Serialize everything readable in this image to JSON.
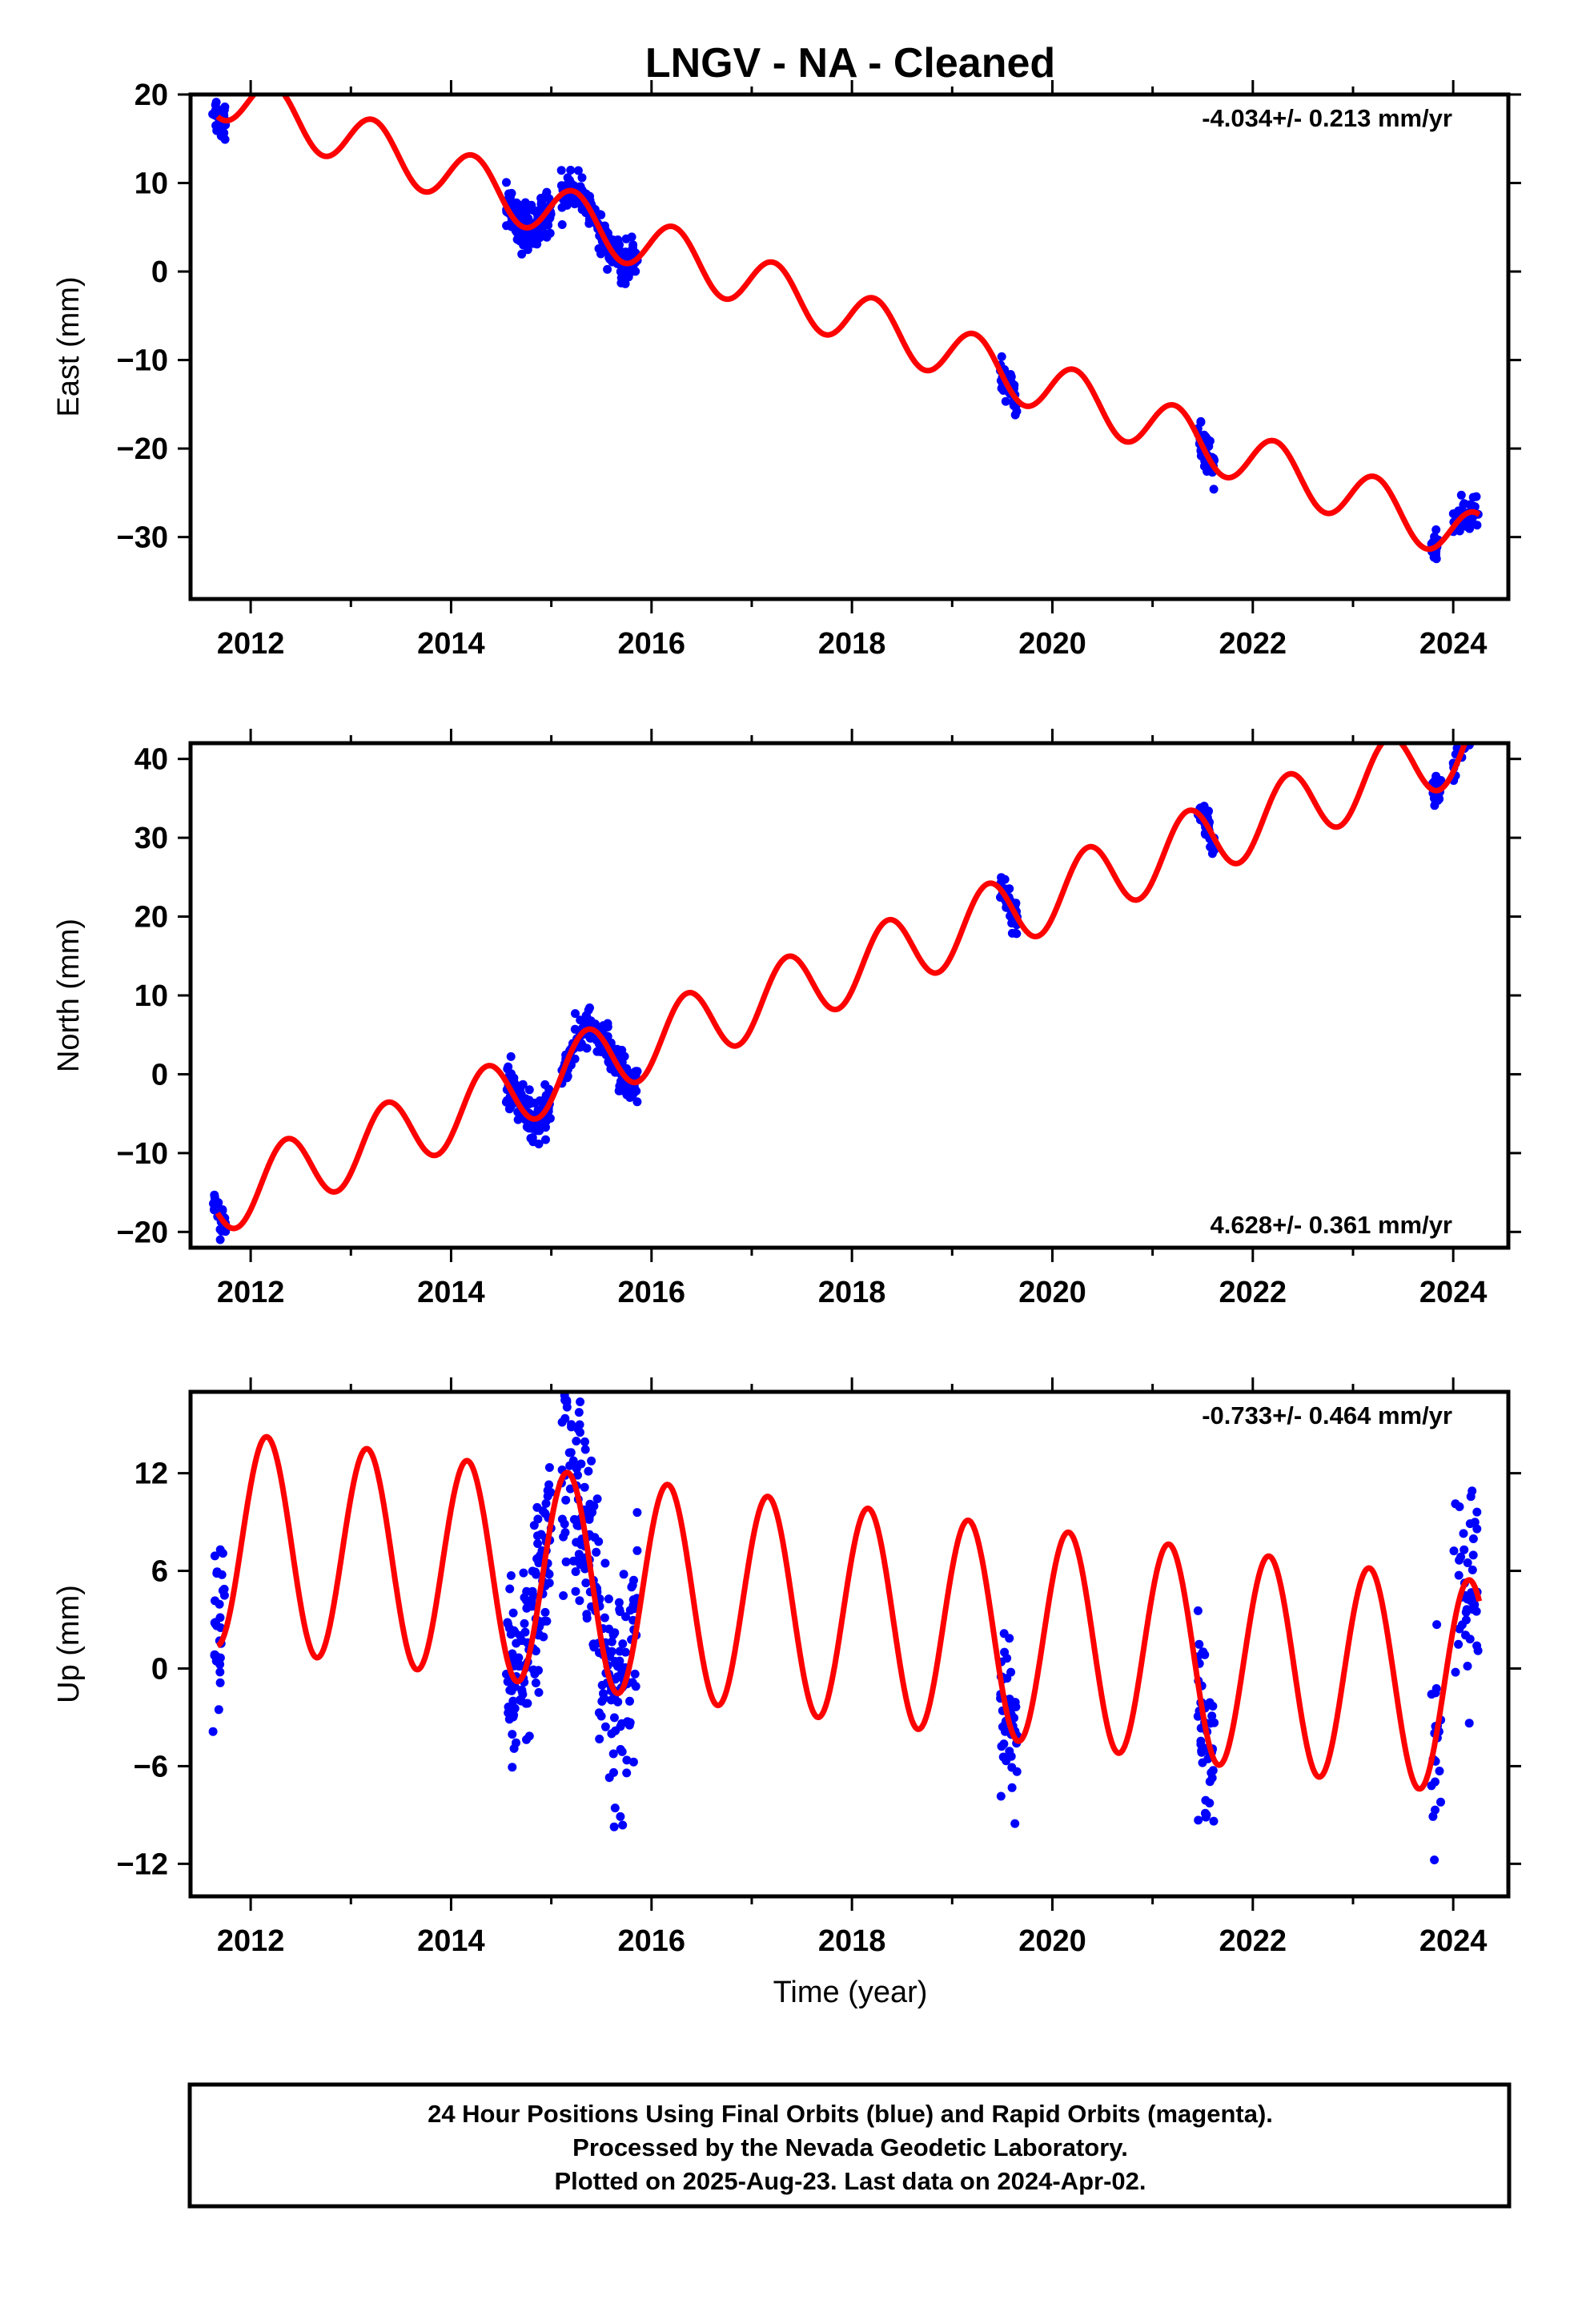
{
  "page": {
    "title": "LNGV  - NA - Cleaned",
    "footer_lines": [
      "24 Hour Positions Using Final Orbits (blue) and Rapid Orbits (magenta).",
      "Processed by the Nevada Geodetic Laboratory.",
      "Plotted on 2025-Aug-23. Last data on 2024-Apr-02."
    ]
  },
  "colors": {
    "observations": "#0000ff",
    "model": "#ff0000",
    "frame": "#000000"
  },
  "chart_data": [
    {
      "type": "scatter",
      "ylabel": "East (mm)",
      "rate": "-4.034+/- 0.213 mm/yr",
      "rate_position": "top-right",
      "xlim": [
        2011.4,
        2024.55
      ],
      "ylim": [
        -37,
        20
      ],
      "x_ticks": [
        2012,
        2014,
        2016,
        2018,
        2020,
        2022,
        2024
      ],
      "y_ticks": [
        20,
        10,
        0,
        -10,
        -20,
        -30
      ],
      "grid": false,
      "model": {
        "trend_start": 2011.67,
        "trend_start_value": 17.5,
        "rate": -4.034,
        "cos_amp": 0.5,
        "sin_amp": 3.0,
        "offsets": []
      },
      "clusters": [
        {
          "t0": 2011.62,
          "t1": 2011.75,
          "resid_sd": 1.2,
          "n": 30
        },
        {
          "t0": 2014.55,
          "t1": 2015.0,
          "resid_sd": 1.3,
          "n": 130
        },
        {
          "t0": 2015.1,
          "t1": 2015.86,
          "resid_sd": 1.0,
          "n": 200
        },
        {
          "t0": 2019.48,
          "t1": 2019.65,
          "resid_sd": 0.9,
          "n": 45
        },
        {
          "t0": 2021.45,
          "t1": 2021.62,
          "resid_sd": 1.0,
          "n": 45
        },
        {
          "t0": 2023.78,
          "t1": 2023.85,
          "resid_sd": 1.0,
          "n": 20
        },
        {
          "t0": 2024.0,
          "t1": 2024.25,
          "resid_sd": 1.2,
          "n": 45
        }
      ]
    },
    {
      "type": "scatter",
      "ylabel": "North (mm)",
      "rate": "4.628+/- 0.361 mm/yr",
      "rate_position": "bottom-right",
      "xlim": [
        2011.4,
        2024.55
      ],
      "ylim": [
        -22,
        42
      ],
      "x_ticks": [
        2012,
        2014,
        2016,
        2018,
        2020,
        2022,
        2024
      ],
      "y_ticks": [
        40,
        30,
        20,
        10,
        0,
        -10,
        -20
      ],
      "grid": false,
      "model": {
        "trend_start": 2011.67,
        "trend_start_value": -17.6,
        "rate": 4.628,
        "cos_amp": -2.8,
        "sin_amp": 3.5,
        "offsets": []
      },
      "clusters": [
        {
          "t0": 2011.62,
          "t1": 2011.75,
          "resid_sd": 1.0,
          "n": 30
        },
        {
          "t0": 2014.55,
          "t1": 2015.0,
          "resid_sd": 1.4,
          "n": 130
        },
        {
          "t0": 2015.1,
          "t1": 2015.86,
          "resid_sd": 1.2,
          "n": 200
        },
        {
          "t0": 2019.48,
          "t1": 2019.65,
          "resid_sd": 1.1,
          "n": 45
        },
        {
          "t0": 2021.45,
          "t1": 2021.62,
          "resid_sd": 0.9,
          "n": 45
        },
        {
          "t0": 2023.78,
          "t1": 2023.88,
          "resid_sd": 1.0,
          "n": 20
        },
        {
          "t0": 2024.0,
          "t1": 2024.25,
          "resid_sd": 1.2,
          "n": 45
        }
      ]
    },
    {
      "type": "scatter",
      "ylabel": "Up (mm)",
      "rate": "-0.733+/- 0.464 mm/yr",
      "rate_position": "top-right",
      "xlim": [
        2011.4,
        2024.55
      ],
      "ylim": [
        -14,
        17
      ],
      "x_ticks": [
        2012,
        2014,
        2016,
        2018,
        2020,
        2022,
        2024
      ],
      "y_ticks": [
        12,
        6,
        0,
        -6,
        -12
      ],
      "grid": false,
      "model": {
        "trend_start": 2011.67,
        "trend_start_value": 1.4,
        "rate": -0.733,
        "cos_amp": 3.5,
        "sin_amp": 5.6,
        "offsets": []
      },
      "clusters": [
        {
          "t0": 2011.62,
          "t1": 2011.75,
          "resid_sd": 3.0,
          "n": 30
        },
        {
          "t0": 2014.55,
          "t1": 2015.0,
          "resid_sd": 2.8,
          "n": 130
        },
        {
          "t0": 2015.1,
          "t1": 2015.86,
          "resid_sd": 3.2,
          "n": 200
        },
        {
          "t0": 2019.48,
          "t1": 2019.65,
          "resid_sd": 2.5,
          "n": 45
        },
        {
          "t0": 2021.45,
          "t1": 2021.62,
          "resid_sd": 2.5,
          "n": 45
        },
        {
          "t0": 2023.78,
          "t1": 2023.88,
          "resid_sd": 3.5,
          "n": 20
        },
        {
          "t0": 2024.0,
          "t1": 2024.25,
          "resid_sd": 3.0,
          "n": 45
        }
      ]
    }
  ],
  "x_axis": {
    "label": "Time (year)"
  }
}
